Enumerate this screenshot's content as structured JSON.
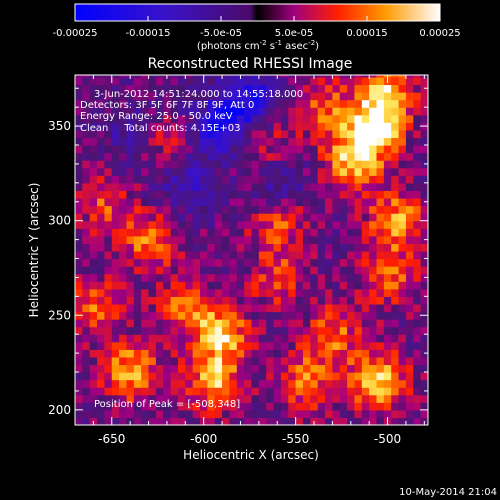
{
  "colorbar": {
    "ticks": [
      "-0.00025",
      "-0.00015",
      "-5.0e-05",
      "5.0e-05",
      "0.00015",
      "0.00025"
    ],
    "units_prefix": "(photons cm",
    "units_exp1": "-2",
    "units_mid": " s",
    "units_exp2": "-1",
    "units_mid2": " asec",
    "units_exp3": "-2",
    "units_suffix": ")"
  },
  "chart_data": {
    "type": "heatmap",
    "title": "Reconstructed RHESSI Image",
    "xlabel": "Heliocentric X (arcsec)",
    "ylabel": "Heliocentric Y (arcsec)",
    "xlim": [
      -670,
      -478
    ],
    "ylim": [
      192,
      377
    ],
    "xticks": [
      -650,
      -600,
      -550,
      -500
    ],
    "yticks": [
      200,
      250,
      300,
      350
    ],
    "xtick_labels": [
      "-650",
      "-600",
      "-550",
      "-500"
    ],
    "ytick_labels": [
      "200",
      "250",
      "300",
      "350"
    ],
    "colorscale_range": [
      -0.00025,
      0.00025
    ],
    "annotations": [
      "3-Jun-2012 14:51:24.000 to 14:55:18.000",
      "Detectors: 3F 5F 6F 7F 8F 9F, Att 0",
      "Energy Range: 25.0 - 50.0 keV",
      "Clean     Total counts: 4.15E+03"
    ],
    "peak_label": "Position of Peak = [-508,348]",
    "hotspots": [
      {
        "x": -508,
        "y": 348,
        "level": 1.0
      },
      {
        "x": -500,
        "y": 368,
        "level": 0.75
      },
      {
        "x": -520,
        "y": 330,
        "level": 0.7
      },
      {
        "x": -495,
        "y": 300,
        "level": 0.7
      },
      {
        "x": -500,
        "y": 270,
        "level": 0.55
      },
      {
        "x": -505,
        "y": 215,
        "level": 0.85
      },
      {
        "x": -530,
        "y": 240,
        "level": 0.55
      },
      {
        "x": -545,
        "y": 215,
        "level": 0.6
      },
      {
        "x": -560,
        "y": 300,
        "level": 0.5
      },
      {
        "x": -590,
        "y": 240,
        "level": 0.75
      },
      {
        "x": -595,
        "y": 215,
        "level": 0.7
      },
      {
        "x": -610,
        "y": 255,
        "level": 0.55
      },
      {
        "x": -640,
        "y": 220,
        "level": 0.75
      },
      {
        "x": -660,
        "y": 255,
        "level": 0.55
      },
      {
        "x": -630,
        "y": 290,
        "level": 0.6
      },
      {
        "x": -655,
        "y": 310,
        "level": 0.45
      },
      {
        "x": -570,
        "y": 340,
        "level": 0.45
      },
      {
        "x": -620,
        "y": 340,
        "level": 0.35
      },
      {
        "x": -535,
        "y": 360,
        "level": 0.5
      },
      {
        "x": -560,
        "y": 270,
        "level": 0.45
      }
    ],
    "coldspots": [
      {
        "x": -590,
        "y": 350,
        "level": -0.8
      },
      {
        "x": -575,
        "y": 365,
        "level": -0.7
      },
      {
        "x": -610,
        "y": 320,
        "level": -0.45
      },
      {
        "x": -560,
        "y": 320,
        "level": -0.4
      },
      {
        "x": -640,
        "y": 345,
        "level": -0.3
      }
    ]
  },
  "timestamp": "10-May-2014 21:04"
}
